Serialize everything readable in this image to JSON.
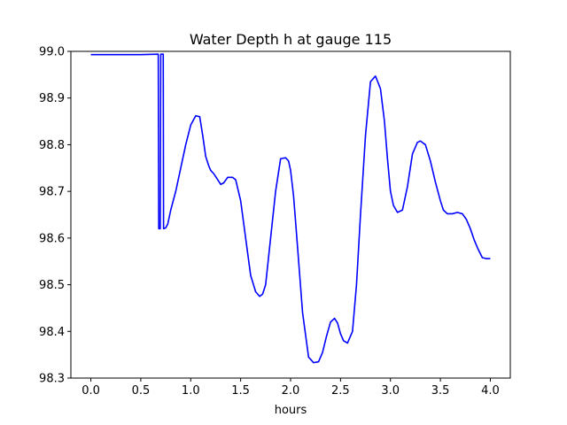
{
  "chart_data": {
    "type": "line",
    "title": "Water Depth h at gauge 115",
    "xlabel": "hours",
    "ylabel": "",
    "xlim": [
      -0.2,
      4.2
    ],
    "ylim": [
      98.3,
      99.0
    ],
    "xticks": [
      0.0,
      0.5,
      1.0,
      1.5,
      2.0,
      2.5,
      3.0,
      3.5,
      4.0
    ],
    "xtick_labels": [
      "0.0",
      "0.5",
      "1.0",
      "1.5",
      "2.0",
      "2.5",
      "3.0",
      "3.5",
      "4.0"
    ],
    "yticks": [
      98.3,
      98.4,
      98.5,
      98.6,
      98.7,
      98.8,
      98.9,
      99.0
    ],
    "ytick_labels": [
      "98.3",
      "98.4",
      "98.5",
      "98.6",
      "98.7",
      "98.8",
      "98.9",
      "99.0"
    ],
    "grid": false,
    "series": [
      {
        "color": "#0000ff",
        "x": [
          0.0,
          0.3,
          0.5,
          0.67,
          0.675,
          0.68,
          0.69,
          0.695,
          0.7,
          0.703,
          0.715,
          0.725,
          0.728,
          0.73,
          0.75,
          0.77,
          0.8,
          0.85,
          0.9,
          0.95,
          1.0,
          1.05,
          1.09,
          1.12,
          1.15,
          1.18,
          1.2,
          1.23,
          1.27,
          1.3,
          1.33,
          1.37,
          1.42,
          1.45,
          1.5,
          1.55,
          1.6,
          1.65,
          1.69,
          1.72,
          1.75,
          1.8,
          1.85,
          1.9,
          1.95,
          1.98,
          2.0,
          2.03,
          2.07,
          2.12,
          2.18,
          2.23,
          2.28,
          2.32,
          2.36,
          2.4,
          2.44,
          2.47,
          2.5,
          2.53,
          2.57,
          2.62,
          2.66,
          2.7,
          2.75,
          2.8,
          2.85,
          2.9,
          2.94,
          2.97,
          3.0,
          3.03,
          3.07,
          3.12,
          3.17,
          3.22,
          3.27,
          3.3,
          3.35,
          3.4,
          3.45,
          3.5,
          3.53,
          3.57,
          3.62,
          3.67,
          3.72,
          3.76,
          3.8,
          3.84,
          3.88,
          3.92,
          3.96,
          4.0
        ],
        "y": [
          98.993,
          98.993,
          98.993,
          98.994,
          98.994,
          98.62,
          98.62,
          98.62,
          98.994,
          98.994,
          98.994,
          98.994,
          98.62,
          98.62,
          98.622,
          98.63,
          98.66,
          98.7,
          98.75,
          98.8,
          98.842,
          98.862,
          98.86,
          98.82,
          98.775,
          98.755,
          98.745,
          98.738,
          98.725,
          98.715,
          98.718,
          98.73,
          98.73,
          98.725,
          98.68,
          98.6,
          98.52,
          98.485,
          98.475,
          98.48,
          98.5,
          98.6,
          98.7,
          98.77,
          98.772,
          98.765,
          98.745,
          98.69,
          98.58,
          98.44,
          98.345,
          98.333,
          98.335,
          98.355,
          98.39,
          98.42,
          98.428,
          98.418,
          98.395,
          98.38,
          98.375,
          98.4,
          98.5,
          98.65,
          98.82,
          98.935,
          98.947,
          98.92,
          98.85,
          98.77,
          98.7,
          98.67,
          98.655,
          98.66,
          98.71,
          98.78,
          98.805,
          98.808,
          98.8,
          98.765,
          98.72,
          98.68,
          98.66,
          98.652,
          98.652,
          98.655,
          98.652,
          98.64,
          98.62,
          98.595,
          98.575,
          98.558,
          98.556,
          98.556
        ]
      }
    ]
  }
}
